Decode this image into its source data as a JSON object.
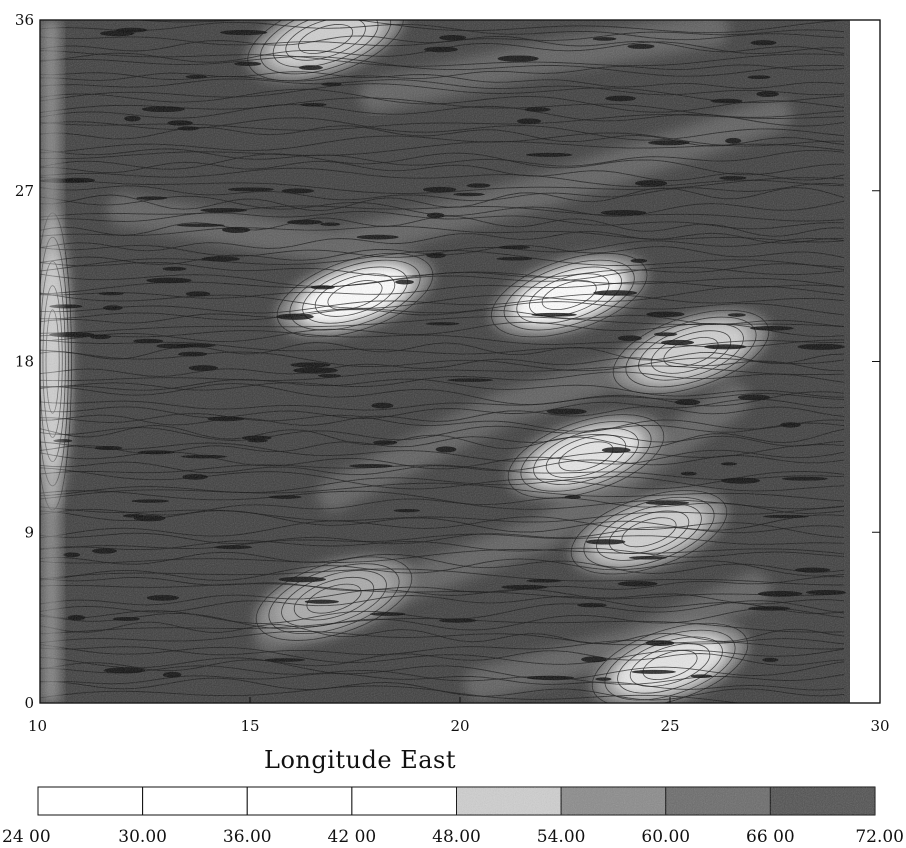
{
  "chart_data": {
    "type": "heatmap",
    "title": "",
    "xlabel": "Longitude East",
    "ylabel": "",
    "xlim": [
      10,
      30
    ],
    "ylim": [
      0,
      36
    ],
    "x_ticks": [
      "10",
      "15",
      "20",
      "25",
      "30"
    ],
    "y_ticks": [
      "0",
      "9",
      "18",
      "27",
      "36"
    ],
    "colorbar": {
      "levels": [
        "24 00",
        "30.00",
        "36.00",
        "42 00",
        "48.00",
        "54.00",
        "60.00",
        "66 00",
        "72.00"
      ],
      "fills": [
        "#ffffff",
        "#ffffff",
        "#ffffff",
        "#ffffff",
        "#cfcfcf",
        "#8a8a8a",
        "#6a6a6a",
        "#505050"
      ]
    },
    "high_value_regions": [
      {
        "x": 17.5,
        "y": 21.5,
        "level": 72
      },
      {
        "x": 22.6,
        "y": 21.5,
        "level": 72
      },
      {
        "x": 10.3,
        "y": 18.0,
        "level": 60
      },
      {
        "x": 23.0,
        "y": 13.0,
        "level": 66
      },
      {
        "x": 25.5,
        "y": 18.5,
        "level": 60
      },
      {
        "x": 24.5,
        "y": 9.0,
        "level": 60
      },
      {
        "x": 25.0,
        "y": 2.0,
        "level": 66
      },
      {
        "x": 16.8,
        "y": 35.0,
        "level": 60
      },
      {
        "x": 17.0,
        "y": 5.5,
        "level": 54
      }
    ]
  }
}
